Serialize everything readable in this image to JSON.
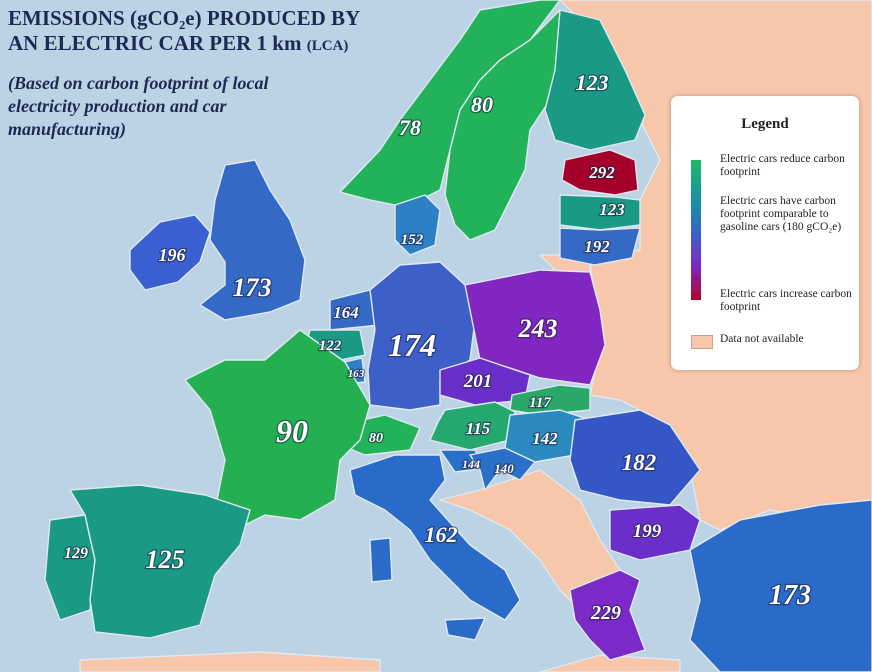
{
  "title": {
    "line1": "EMISSIONS (gCO₂e) PRODUCED BY",
    "line2": "AN ELECTRIC CAR PER 1 km",
    "tag": "(LCA)"
  },
  "subtitle": "(Based on carbon footprint of local electricity production and car manufacturing)",
  "legend": {
    "title": "Legend",
    "reduce": "Electric cars reduce carbon footprint",
    "comparable": "Electric cars have carbon footprint comparable to gasoline cars (180 gCO₂e)",
    "increase": "Electric cars increase carbon footprint",
    "na": "Data not available"
  },
  "colors": {
    "sea": "#bcd3e6",
    "na": "#f6c7aa",
    "green": "#22b35a",
    "teal": "#1a9a84",
    "blue": "#3469c5",
    "purple": "#7b2ac8",
    "red": "#a3002a"
  },
  "regions": [
    {
      "name": "Norway",
      "value": "78"
    },
    {
      "name": "Sweden",
      "value": "80"
    },
    {
      "name": "Finland",
      "value": "123"
    },
    {
      "name": "Estonia",
      "value": "292"
    },
    {
      "name": "Latvia",
      "value": "123"
    },
    {
      "name": "Lithuania",
      "value": "192"
    },
    {
      "name": "Ireland",
      "value": "196"
    },
    {
      "name": "United Kingdom",
      "value": "173"
    },
    {
      "name": "Denmark",
      "value": "152"
    },
    {
      "name": "Netherlands",
      "value": "164"
    },
    {
      "name": "Belgium",
      "value": "122"
    },
    {
      "name": "Luxembourg",
      "value": "163"
    },
    {
      "name": "Germany",
      "value": "174"
    },
    {
      "name": "Poland",
      "value": "243"
    },
    {
      "name": "Czechia",
      "value": "201"
    },
    {
      "name": "Slovakia",
      "value": "117"
    },
    {
      "name": "Austria",
      "value": "115"
    },
    {
      "name": "Hungary",
      "value": "142"
    },
    {
      "name": "Switzerland",
      "value": "80"
    },
    {
      "name": "France",
      "value": "90"
    },
    {
      "name": "Slovenia",
      "value": "144"
    },
    {
      "name": "Croatia",
      "value": "140"
    },
    {
      "name": "Romania",
      "value": "182"
    },
    {
      "name": "Bulgaria",
      "value": "199"
    },
    {
      "name": "Italy",
      "value": "162"
    },
    {
      "name": "Portugal",
      "value": "129"
    },
    {
      "name": "Spain",
      "value": "125"
    },
    {
      "name": "Greece",
      "value": "229"
    },
    {
      "name": "Turkey",
      "value": "173"
    }
  ]
}
